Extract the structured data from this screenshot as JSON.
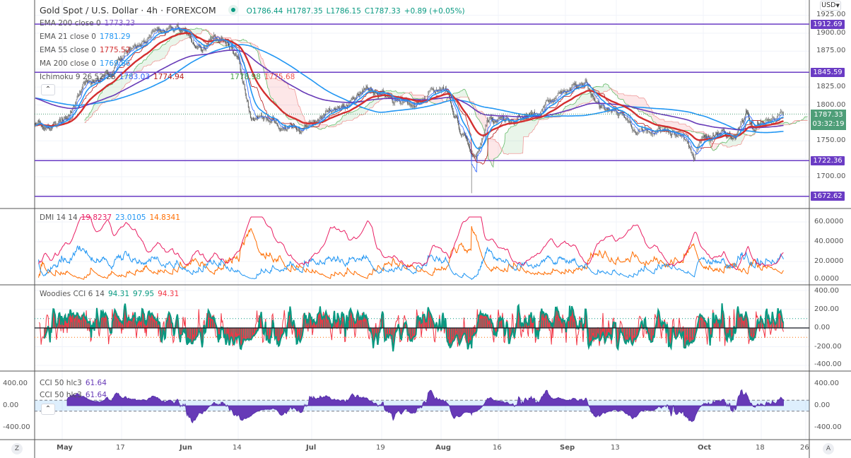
{
  "header": {
    "title": "Gold Spot / U.S. Dollar · 4h · FOREXCOM",
    "status_dot_color": "#089981",
    "ohlc": {
      "open": "O1786.44",
      "high": "H1787.35",
      "low": "L1786.15",
      "close": "C1787.33",
      "change": "+0.89 (+0.05%)"
    }
  },
  "indicators": {
    "ema200": {
      "label": "EMA 200 close 0",
      "value": "1773.23",
      "color": "#6a3bc4"
    },
    "ema21": {
      "label": "EMA 21 close 0",
      "value": "1781.29",
      "color": "#2196f3"
    },
    "ema55": {
      "label": "EMA 55 close 0",
      "value": "1775.52",
      "color": "#d32f2f"
    },
    "ma200": {
      "label": "MA 200 close 0",
      "value": "1769.86",
      "color": "#2196f3"
    },
    "ichimoku": {
      "label": "Ichimoku 9 26 52 26",
      "v1": "1783.03",
      "v2": "1774.94",
      "v3": "1778.98",
      "v4": "1775.68"
    },
    "dmi": {
      "label": "DMI 14 14",
      "adx": "19.8237",
      "plus": "23.0105",
      "minus": "14.8341"
    },
    "woodies": {
      "label": "Woodies CCI 6 14",
      "v1": "94.31",
      "v2": "97.95",
      "v3": "94.31"
    },
    "cci": {
      "label": "CCI 50 hlc3",
      "value": "61.64"
    }
  },
  "currency_button": "USD",
  "collapse_icon": "chevron-up-icon",
  "current_price": {
    "price": "1787.33",
    "countdown": "03:32:19",
    "color": "#4e9e78"
  },
  "level_color": "#6a3bc4",
  "buttons": {
    "zoom": "Z",
    "auto": "A"
  },
  "chart_data": {
    "type": "candlestick",
    "title": "Gold Spot / U.S. Dollar 4h",
    "price_axis": {
      "ticks": [
        "1925.00",
        "1900.00",
        "1875.00",
        "1825.00",
        "1800.00",
        "1750.00",
        "1700.00"
      ],
      "range": [
        1660,
        1935
      ]
    },
    "time_axis": {
      "ticks": [
        {
          "label": "May",
          "date": "05-01"
        },
        {
          "label": "17",
          "date": "05-17"
        },
        {
          "label": "Jun",
          "date": "06-01"
        },
        {
          "label": "14",
          "date": "06-14"
        },
        {
          "label": "Jul",
          "date": "07-01"
        },
        {
          "label": "19",
          "date": "07-19"
        },
        {
          "label": "Aug",
          "date": "08-01"
        },
        {
          "label": "16",
          "date": "08-16"
        },
        {
          "label": "Sep",
          "date": "09-01"
        },
        {
          "label": "13",
          "date": "09-13"
        },
        {
          "label": "Oct",
          "date": "10-01"
        },
        {
          "label": "18",
          "date": "10-18"
        },
        {
          "label": "26",
          "date": "10-26"
        }
      ]
    },
    "horizontal_levels": [
      "1912.69",
      "1845.59",
      "1722.36",
      "1672.62"
    ],
    "close_path": [
      [
        "04-24",
        1775
      ],
      [
        "04-30",
        1770
      ],
      [
        "05-03",
        1790
      ],
      [
        "05-07",
        1830
      ],
      [
        "05-10",
        1835
      ],
      [
        "05-14",
        1845
      ],
      [
        "05-18",
        1870
      ],
      [
        "05-25",
        1895
      ],
      [
        "06-01",
        1905
      ],
      [
        "06-04",
        1880
      ],
      [
        "06-10",
        1895
      ],
      [
        "06-14",
        1865
      ],
      [
        "06-17",
        1780
      ],
      [
        "06-21",
        1785
      ],
      [
        "06-25",
        1775
      ],
      [
        "06-29",
        1760
      ],
      [
        "07-01",
        1775
      ],
      [
        "07-06",
        1795
      ],
      [
        "07-12",
        1805
      ],
      [
        "07-15",
        1825
      ],
      [
        "07-19",
        1815
      ],
      [
        "07-23",
        1800
      ],
      [
        "07-27",
        1805
      ],
      [
        "07-30",
        1825
      ],
      [
        "08-03",
        1815
      ],
      [
        "08-06",
        1765
      ],
      [
        "08-09",
        1730
      ],
      [
        "08-11",
        1735
      ],
      [
        "08-13",
        1775
      ],
      [
        "08-16",
        1780
      ],
      [
        "08-20",
        1780
      ],
      [
        "08-25",
        1790
      ],
      [
        "08-31",
        1815
      ],
      [
        "09-03",
        1825
      ],
      [
        "09-06",
        1825
      ],
      [
        "09-09",
        1795
      ],
      [
        "09-13",
        1795
      ],
      [
        "09-17",
        1765
      ],
      [
        "09-22",
        1770
      ],
      [
        "09-27",
        1750
      ],
      [
        "09-29",
        1725
      ],
      [
        "10-01",
        1760
      ],
      [
        "10-06",
        1760
      ],
      [
        "10-11",
        1760
      ],
      [
        "10-14",
        1795
      ],
      [
        "10-16",
        1765
      ],
      [
        "10-19",
        1780
      ],
      [
        "10-22",
        1787.33
      ]
    ],
    "spikes": [
      {
        "date": "08-09",
        "low": 1677
      }
    ],
    "dmi_axis": {
      "ticks": [
        "60.0000",
        "40.0000",
        "20.0000",
        "0.0000"
      ],
      "range": [
        0,
        60
      ]
    },
    "woodies_axis": {
      "ticks": [
        "400.00",
        "200.00",
        "0.00",
        "-200.00",
        "-400.00"
      ],
      "range": [
        -400,
        400
      ]
    },
    "cci_axis": {
      "ticks": [
        "400.00",
        "0.00",
        "-400.00"
      ],
      "range": [
        -400,
        400
      ],
      "band": [
        -100,
        100
      ]
    }
  }
}
